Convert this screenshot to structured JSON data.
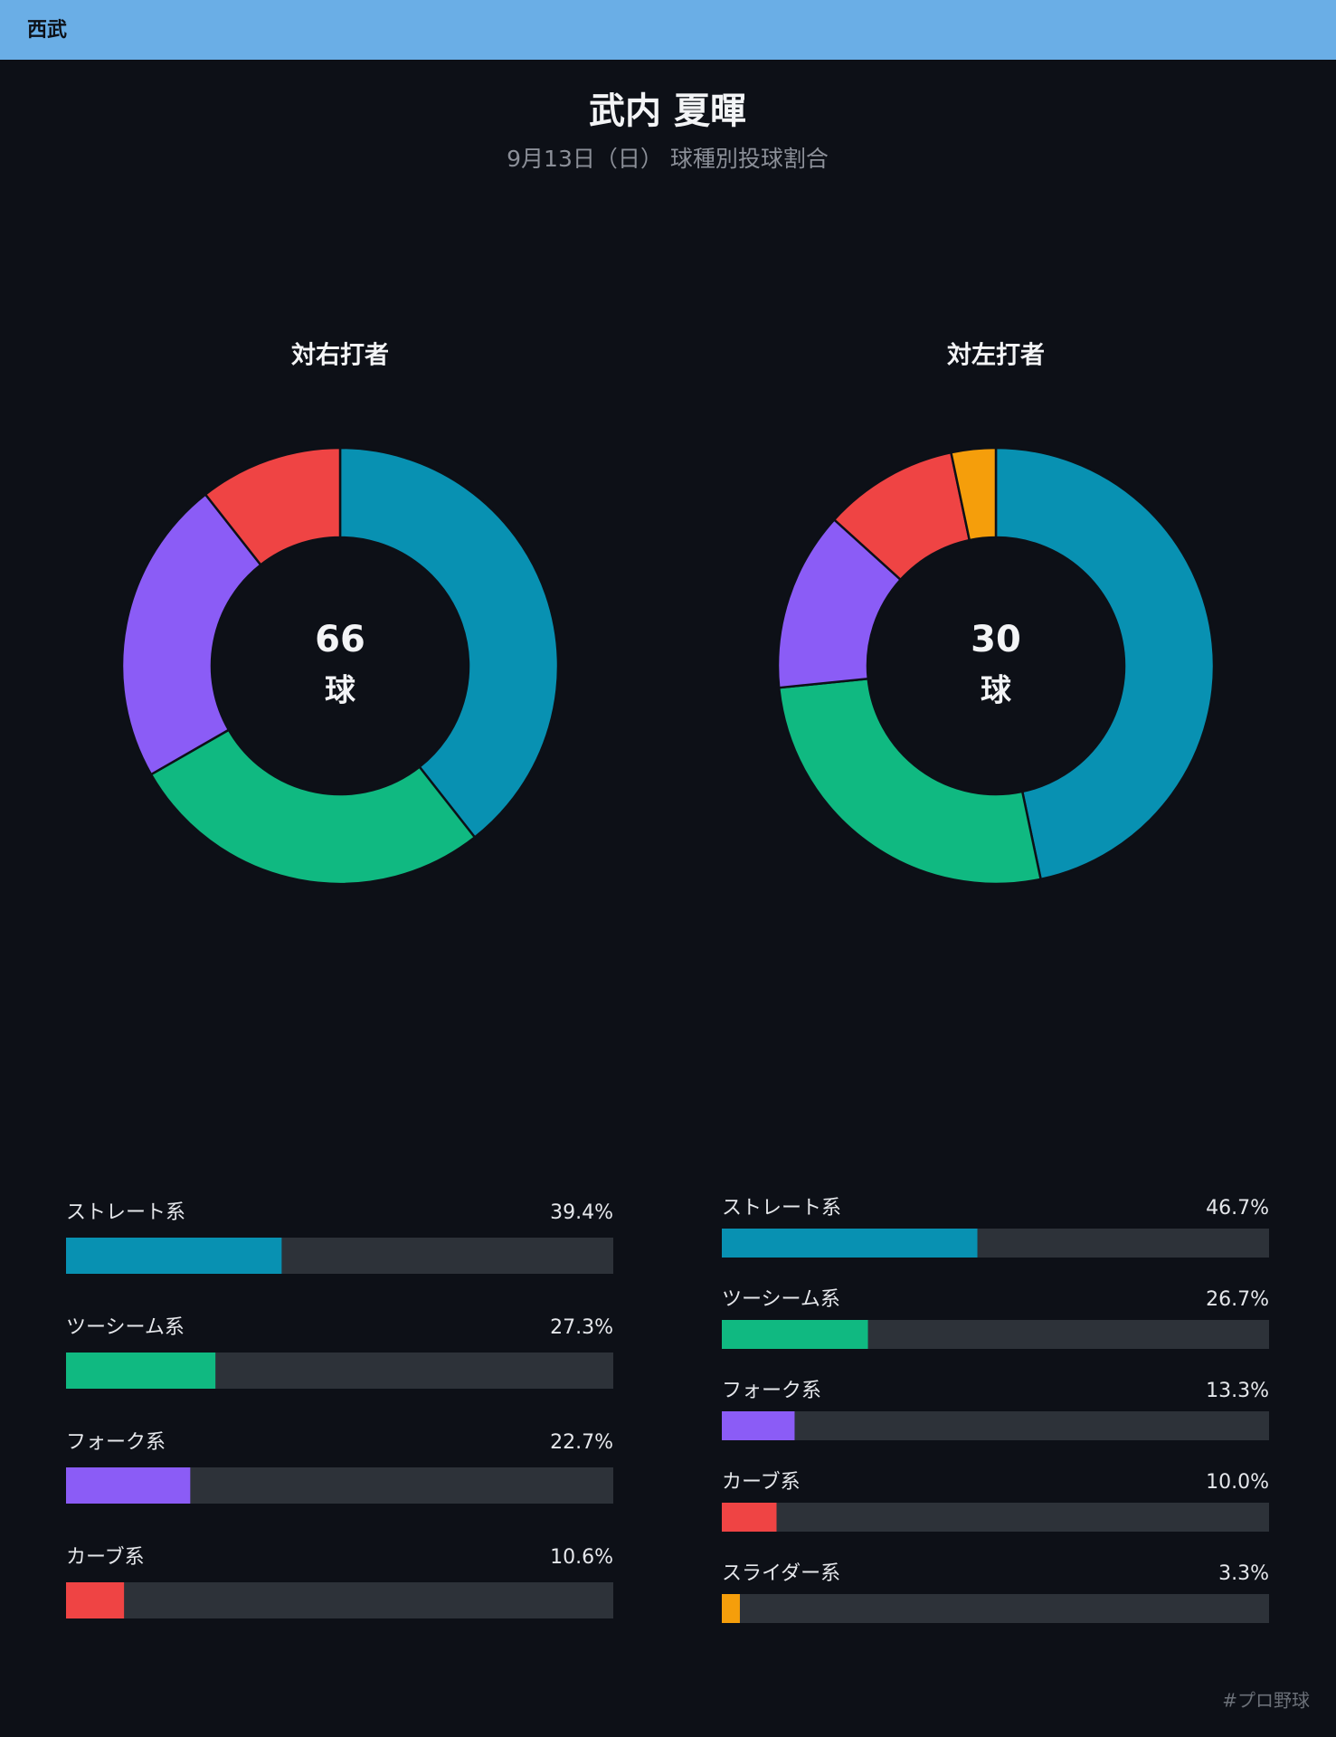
{
  "header": {
    "team": "西武"
  },
  "title": "武内 夏暉",
  "subtitle": "9月13日（日） 球種別投球割合",
  "chart_data": [
    {
      "type": "pie",
      "title": "対右打者",
      "total": 66,
      "total_unit": "球",
      "categories": [
        "ストレート系",
        "ツーシーム系",
        "フォーク系",
        "カーブ系"
      ],
      "values": [
        39.4,
        27.3,
        22.7,
        10.6
      ],
      "value_labels": [
        "39.4%",
        "27.3%",
        "22.7%",
        "10.6%"
      ],
      "colors": [
        "#0891b2",
        "#10b981",
        "#8b5cf6",
        "#ef4444"
      ],
      "xlim": [
        0,
        100
      ]
    },
    {
      "type": "pie",
      "title": "対左打者",
      "total": 30,
      "total_unit": "球",
      "categories": [
        "ストレート系",
        "ツーシーム系",
        "フォーク系",
        "カーブ系",
        "スライダー系"
      ],
      "values": [
        46.7,
        26.7,
        13.3,
        10.0,
        3.3
      ],
      "value_labels": [
        "46.7%",
        "26.7%",
        "13.3%",
        "10.0%",
        "3.3%"
      ],
      "colors": [
        "#0891b2",
        "#10b981",
        "#8b5cf6",
        "#ef4444",
        "#f59e0b"
      ],
      "xlim": [
        0,
        100
      ]
    }
  ],
  "footer": "#プロ野球"
}
